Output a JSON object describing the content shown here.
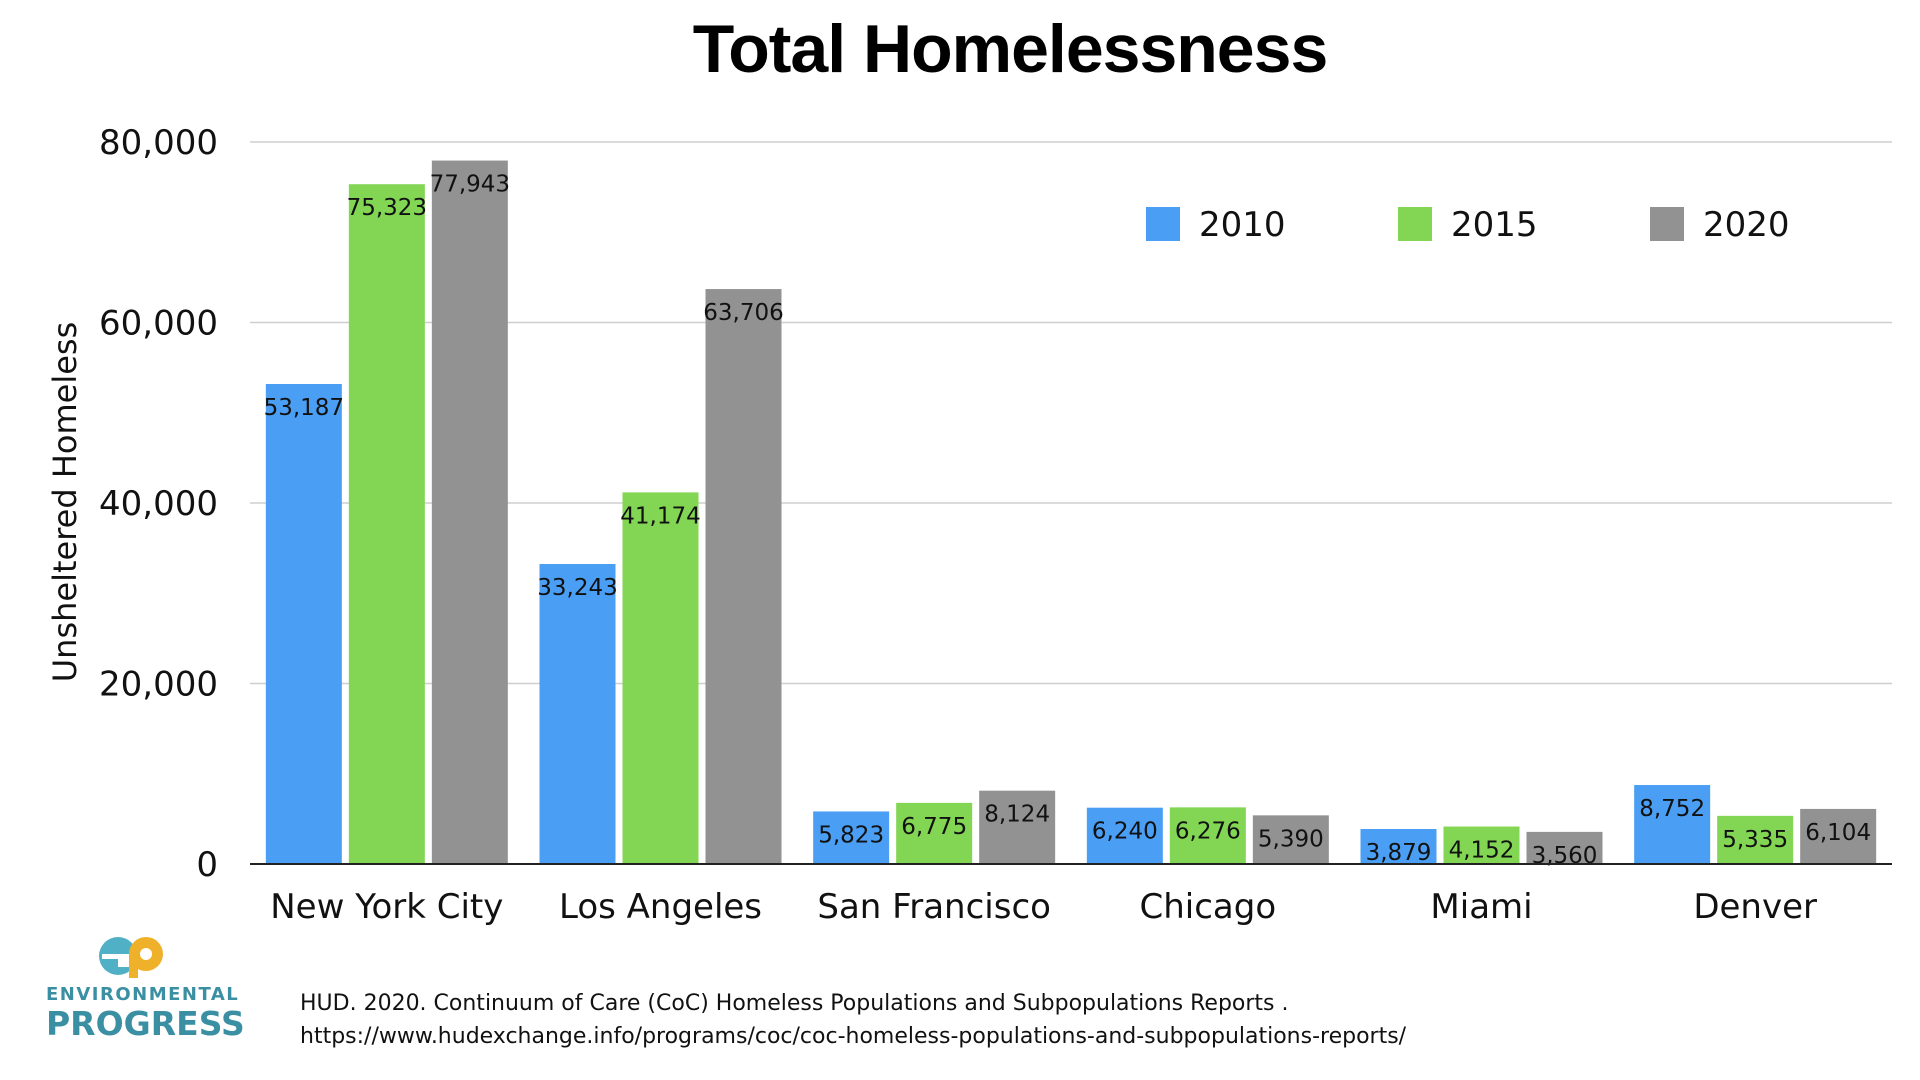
{
  "chart_data": {
    "type": "bar",
    "title": "Total Homelessness",
    "xlabel": "",
    "ylabel": "Unsheltered Homeless",
    "ylim": [
      0,
      80000
    ],
    "yticks": [
      0,
      20000,
      40000,
      60000,
      80000
    ],
    "ytick_labels": [
      "0",
      "20,000",
      "40,000",
      "60,000",
      "80,000"
    ],
    "grid": true,
    "legend_position": "top-right",
    "categories": [
      "New York City",
      "Los Angeles",
      "San Francisco",
      "Chicago",
      "Miami",
      "Denver"
    ],
    "series": [
      {
        "name": "2010",
        "color": "#4a9ff5",
        "values": [
          53187,
          33243,
          5823,
          6240,
          3879,
          8752
        ],
        "labels": [
          "53,187",
          "33,243",
          "5,823",
          "6,240",
          "3,879",
          "8,752"
        ]
      },
      {
        "name": "2015",
        "color": "#82d654",
        "values": [
          75323,
          41174,
          6775,
          6276,
          4152,
          5335
        ],
        "labels": [
          "75,323",
          "41,174",
          "6,775",
          "6,276",
          "4,152",
          "5,335"
        ]
      },
      {
        "name": "2020",
        "color": "#929292",
        "values": [
          77943,
          63706,
          8124,
          5390,
          3560,
          6104
        ],
        "labels": [
          "77,943",
          "63,706",
          "8,124",
          "5,390",
          "3,560",
          "6,104"
        ]
      }
    ]
  },
  "source_text": "HUD. 2020. Continuum of Care (CoC) Homeless Populations and Subpopulations Reports . https://www.hudexchange.info/programs/coc/coc-homeless-populations-and-subpopulations-reports/",
  "logo": {
    "mark_text": "ep",
    "line1": "ENVIRONMENTAL",
    "line2": "PROGRESS",
    "colors": {
      "e": "#4fb0c6",
      "p": "#f0b12a",
      "text": "#3b8fa3"
    }
  }
}
